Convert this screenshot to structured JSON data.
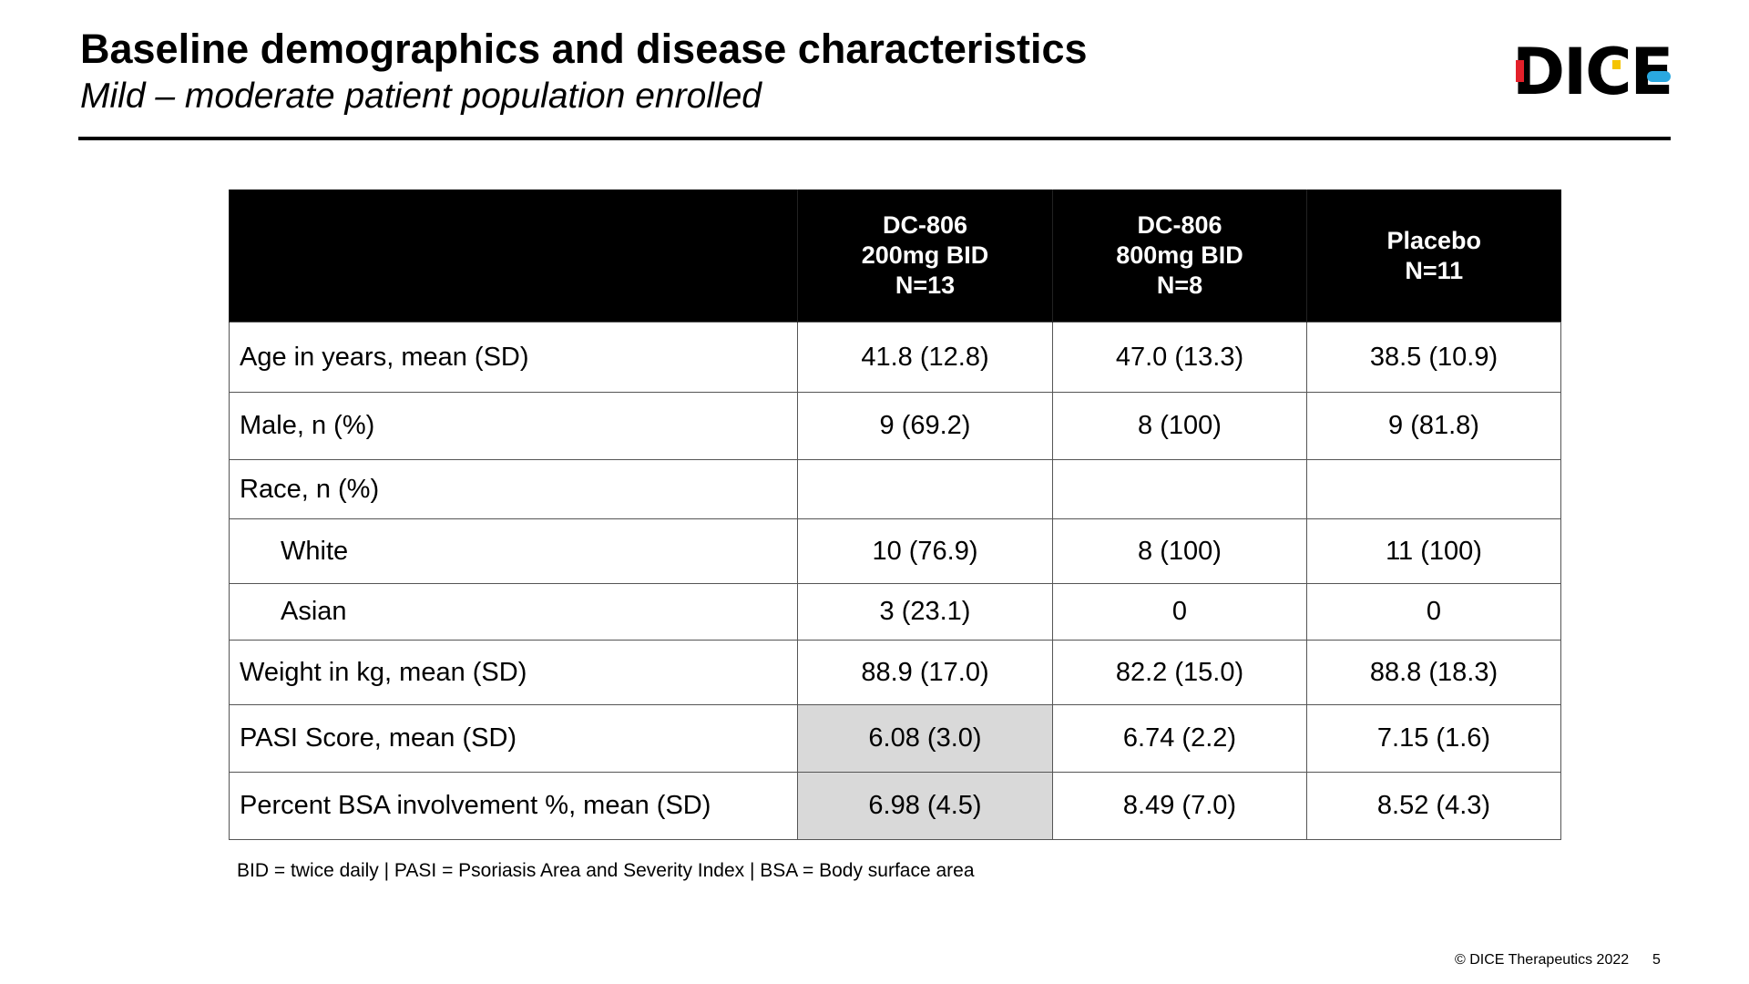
{
  "header": {
    "title": "Baseline demographics and disease characteristics",
    "subtitle": "Mild – moderate patient population enrolled",
    "logo": "DICE"
  },
  "table": {
    "columns": [
      [
        "DC-806",
        "200mg BID",
        "N=13"
      ],
      [
        "DC-806",
        "800mg BID",
        "N=8"
      ],
      [
        "Placebo",
        "N=11"
      ]
    ],
    "rows": [
      {
        "label": "Age in years, mean (SD)",
        "values": [
          "41.8 (12.8)",
          "47.0 (13.3)",
          "38.5 (10.9)"
        ]
      },
      {
        "label": "Male, n (%)",
        "values": [
          "9 (69.2)",
          "8 (100)",
          "9 (81.8)"
        ]
      },
      {
        "label": "Race, n (%)",
        "values": []
      },
      {
        "label": "White",
        "indent": true,
        "values": [
          "10 (76.9)",
          "8 (100)",
          "11 (100)"
        ]
      },
      {
        "label": "Asian",
        "indent": true,
        "values": [
          "3 (23.1)",
          "0",
          "0"
        ]
      },
      {
        "label": "Weight in kg, mean (SD)",
        "values": [
          "88.9 (17.0)",
          "82.2 (15.0)",
          "88.8 (18.3)"
        ]
      },
      {
        "label": "PASI Score, mean (SD)",
        "values": [
          "6.08 (3.0)",
          "6.74 (2.2)",
          "7.15 (1.6)"
        ]
      },
      {
        "label": "Percent BSA involvement %, mean (SD)",
        "values": [
          "6.98 (4.5)",
          "8.49 (7.0)",
          "8.52 (4.3)"
        ]
      }
    ]
  },
  "footnote": "BID = twice daily | PASI = Psoriasis Area and Severity Index | BSA = Body surface area",
  "footer": {
    "copyright": "© DICE Therapeutics 2022",
    "page": "5"
  }
}
